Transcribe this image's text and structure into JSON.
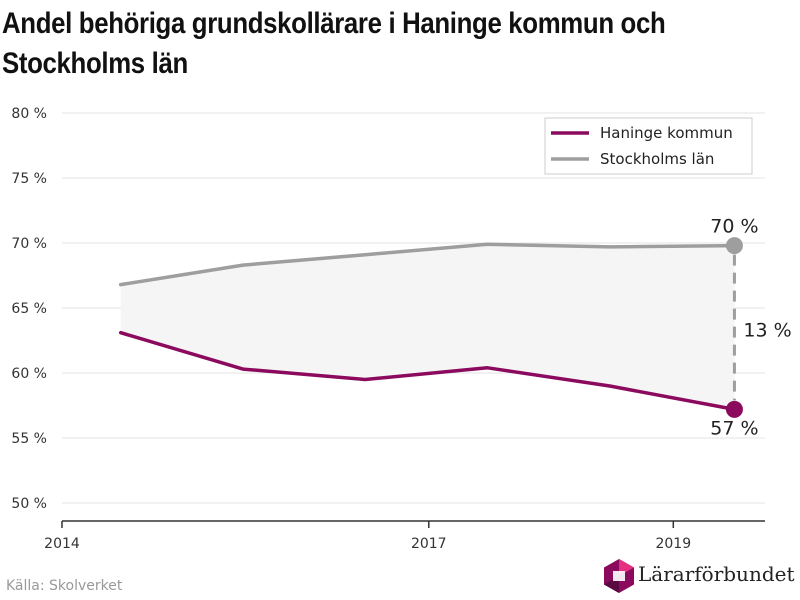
{
  "title": "Andel behöriga grundskollärare i Haninge kommun och Stockholms län",
  "source": "Källa: Skolverket",
  "brand": {
    "name": "Lärarförbundet",
    "logo_icon": "hexagon-logo-icon"
  },
  "colors": {
    "haninge": "#8b0a5e",
    "stockholm": "#9e9e9e",
    "band": "#f5f5f5",
    "grid": "#e3e3e3",
    "axis": "#333333"
  },
  "chart_data": {
    "type": "line",
    "title": "Andel behöriga grundskollärare i Haninge kommun och Stockholms län",
    "xlabel": "",
    "ylabel": "",
    "xlim": [
      2014,
      2019.75
    ],
    "x_ticks": [
      2014,
      2017,
      2019
    ],
    "x_tick_labels": [
      "2014",
      "2017",
      "2019"
    ],
    "ylim": [
      50,
      80
    ],
    "y_ticks": [
      50,
      55,
      60,
      65,
      70,
      75,
      80
    ],
    "y_tick_labels": [
      "50 %",
      "55 %",
      "60 %",
      "65 %",
      "70 %",
      "75 %",
      "80 %"
    ],
    "grid": true,
    "legend": "top-right",
    "series": [
      {
        "name": "Haninge kommun",
        "key": "haninge",
        "x": [
          2014.48,
          2015.48,
          2016.48,
          2017.48,
          2018.48,
          2019.5
        ],
        "y": [
          63.1,
          60.3,
          59.5,
          60.4,
          59.0,
          57.2
        ]
      },
      {
        "name": "Stockholms län",
        "key": "stockholm",
        "x": [
          2014.48,
          2015.48,
          2016.48,
          2017.48,
          2018.48,
          2019.5
        ],
        "y": [
          66.8,
          68.3,
          69.1,
          69.9,
          69.7,
          69.8
        ]
      }
    ],
    "annotations": {
      "end_label_top": "70 %",
      "end_label_bottom": "57 %",
      "difference_label": "13 %"
    }
  }
}
